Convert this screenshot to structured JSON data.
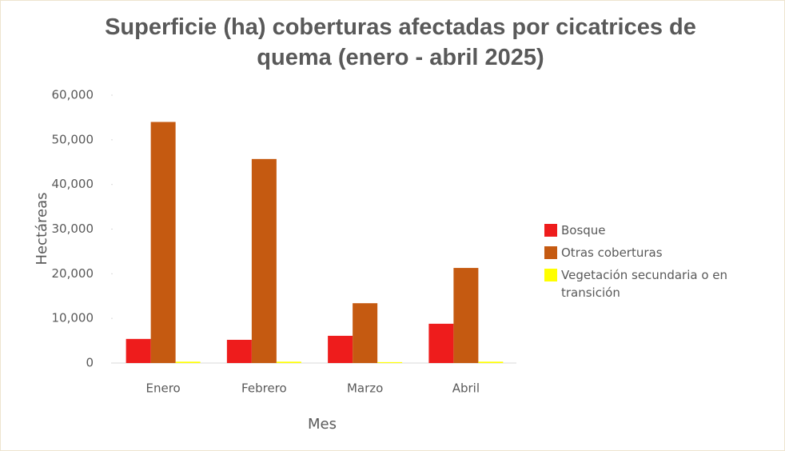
{
  "chart_data": {
    "type": "bar",
    "title": "Superficie (ha) coberturas afectadas por cicatrices de quema (enero - abril 2025)",
    "x_label": "Mes",
    "y_label": "Hectáreas",
    "categories": [
      "Enero",
      "Febrero",
      "Marzo",
      "Abril"
    ],
    "series": [
      {
        "name": "Bosque",
        "color": "#ee1c1c",
        "values": [
          5400,
          5200,
          6100,
          8800
        ]
      },
      {
        "name": "Otras coberturas",
        "color": "#c55a11",
        "values": [
          54000,
          45700,
          13400,
          21300
        ]
      },
      {
        "name": "Vegetación secundaria o en transición",
        "color": "#ffff00",
        "values": [
          300,
          300,
          200,
          300
        ]
      }
    ],
    "ylim": [
      0,
      60000
    ],
    "yticks": [
      0,
      {
        "value": 10000,
        "label": "10,000"
      },
      {
        "value": 20000,
        "label": "20,000"
      },
      {
        "value": 30000,
        "label": "30,000"
      },
      {
        "value": 40000,
        "label": "40,000"
      },
      {
        "value": 50000,
        "label": "50,000"
      },
      {
        "value": 60000,
        "label": "60,000"
      }
    ],
    "legend": "right"
  }
}
